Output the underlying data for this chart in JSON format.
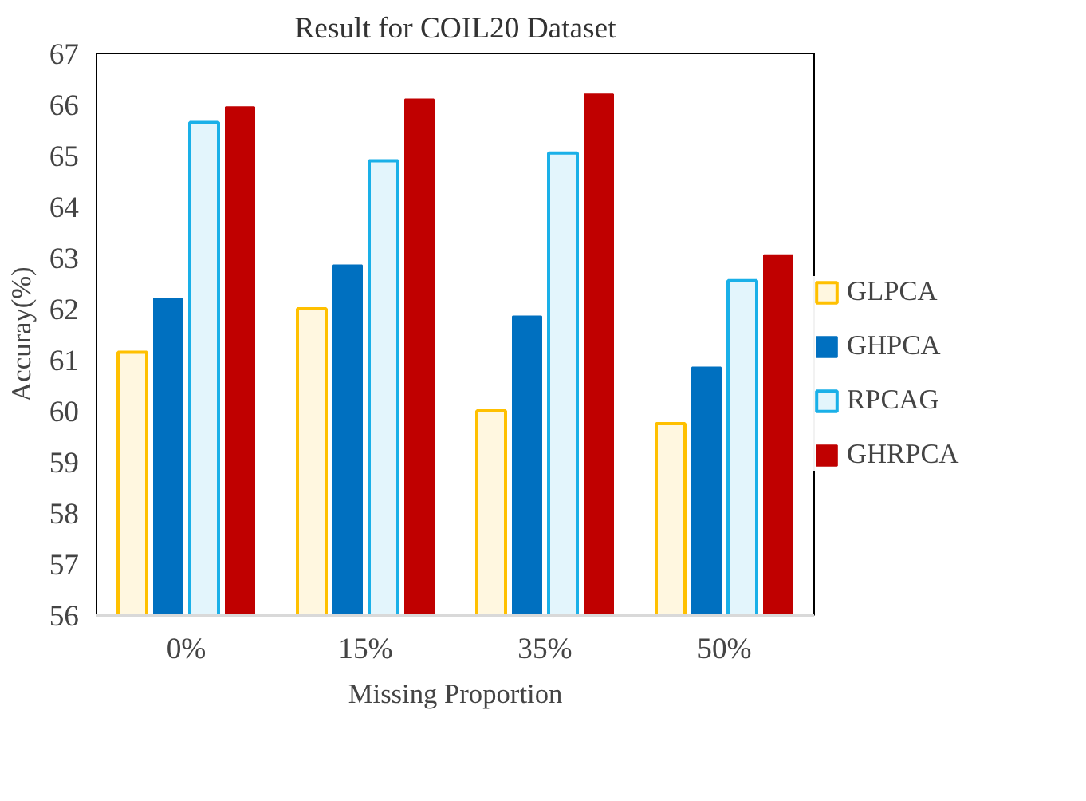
{
  "chart_data": {
    "type": "bar",
    "title": "Result for COIL20 Dataset",
    "xlabel": "Missing Proportion",
    "ylabel": "Accuray(%)",
    "categories": [
      "0%",
      "15%",
      "35%",
      "50%"
    ],
    "series": [
      {
        "name": "GLPCA",
        "color": "#ffc000",
        "values": [
          61.15,
          62.0,
          60.0,
          59.75
        ]
      },
      {
        "name": "GHPCA",
        "color": "#0070c0",
        "values": [
          62.2,
          62.85,
          61.85,
          60.85
        ]
      },
      {
        "name": "RPCAG",
        "color": "#1ab0e8",
        "values": [
          65.65,
          64.9,
          65.05,
          62.55
        ]
      },
      {
        "name": "GHRPCA",
        "color": "#c00000",
        "values": [
          65.95,
          66.1,
          66.2,
          63.05
        ]
      }
    ],
    "ylim": [
      56,
      67
    ],
    "yticks": [
      56,
      57,
      58,
      59,
      60,
      61,
      62,
      63,
      64,
      65,
      66,
      67
    ],
    "grid": false,
    "legend": "right"
  }
}
